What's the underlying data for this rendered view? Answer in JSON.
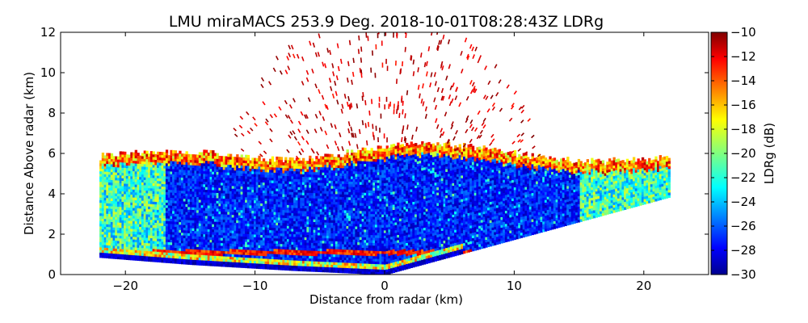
{
  "chart_data": {
    "type": "heatmap",
    "title": "LMU miraMACS 253.9 Deg. 2018-10-01T08:28:43Z  LDRg",
    "xlabel": "Distance from radar (km)",
    "ylabel": "Distance Above radar  (km)",
    "xlim": [
      -25,
      25
    ],
    "ylim": [
      0,
      12
    ],
    "x_ticks": [
      -20,
      -10,
      0,
      10,
      20
    ],
    "y_ticks": [
      0,
      2,
      4,
      6,
      8,
      10,
      12
    ],
    "x_tick_labels": [
      "−20",
      "−10",
      "0",
      "10",
      "20"
    ],
    "y_tick_labels": [
      "0",
      "2",
      "4",
      "6",
      "8",
      "10",
      "12"
    ],
    "colorbar": {
      "label": "LDRg (dB)",
      "range": [
        -30,
        -10
      ],
      "ticks": [
        -30,
        -28,
        -26,
        -24,
        -22,
        -20,
        -18,
        -16,
        -14,
        -12,
        -10
      ],
      "tick_labels": [
        "−30",
        "−28",
        "−26",
        "−24",
        "−22",
        "−20",
        "−18",
        "−16",
        "−14",
        "−12",
        "−10"
      ],
      "colormap": "jet"
    },
    "scan": {
      "beam_direction_deg": 253.9,
      "x_extent_km": [
        -22,
        22
      ],
      "lower_edge": [
        [
          -22,
          0.85
        ],
        [
          -15,
          0.5
        ],
        [
          -7,
          0.2
        ],
        [
          0,
          0
        ],
        [
          22,
          3.85
        ]
      ],
      "layers": [
        {
          "name": "low-level band",
          "height_km": [
            0.9,
            1.3
          ],
          "ldr_db": -20
        },
        {
          "name": "cloud interior",
          "height_km": [
            1.3,
            5.7
          ],
          "ldr_db": -28
        },
        {
          "name": "cloud-top edge",
          "height_km": [
            5.7,
            6.6
          ],
          "ldr_db": -16
        },
        {
          "name": "sparse echoes aloft",
          "height_km": [
            6.6,
            12
          ],
          "ldr_db": -10
        }
      ]
    }
  }
}
